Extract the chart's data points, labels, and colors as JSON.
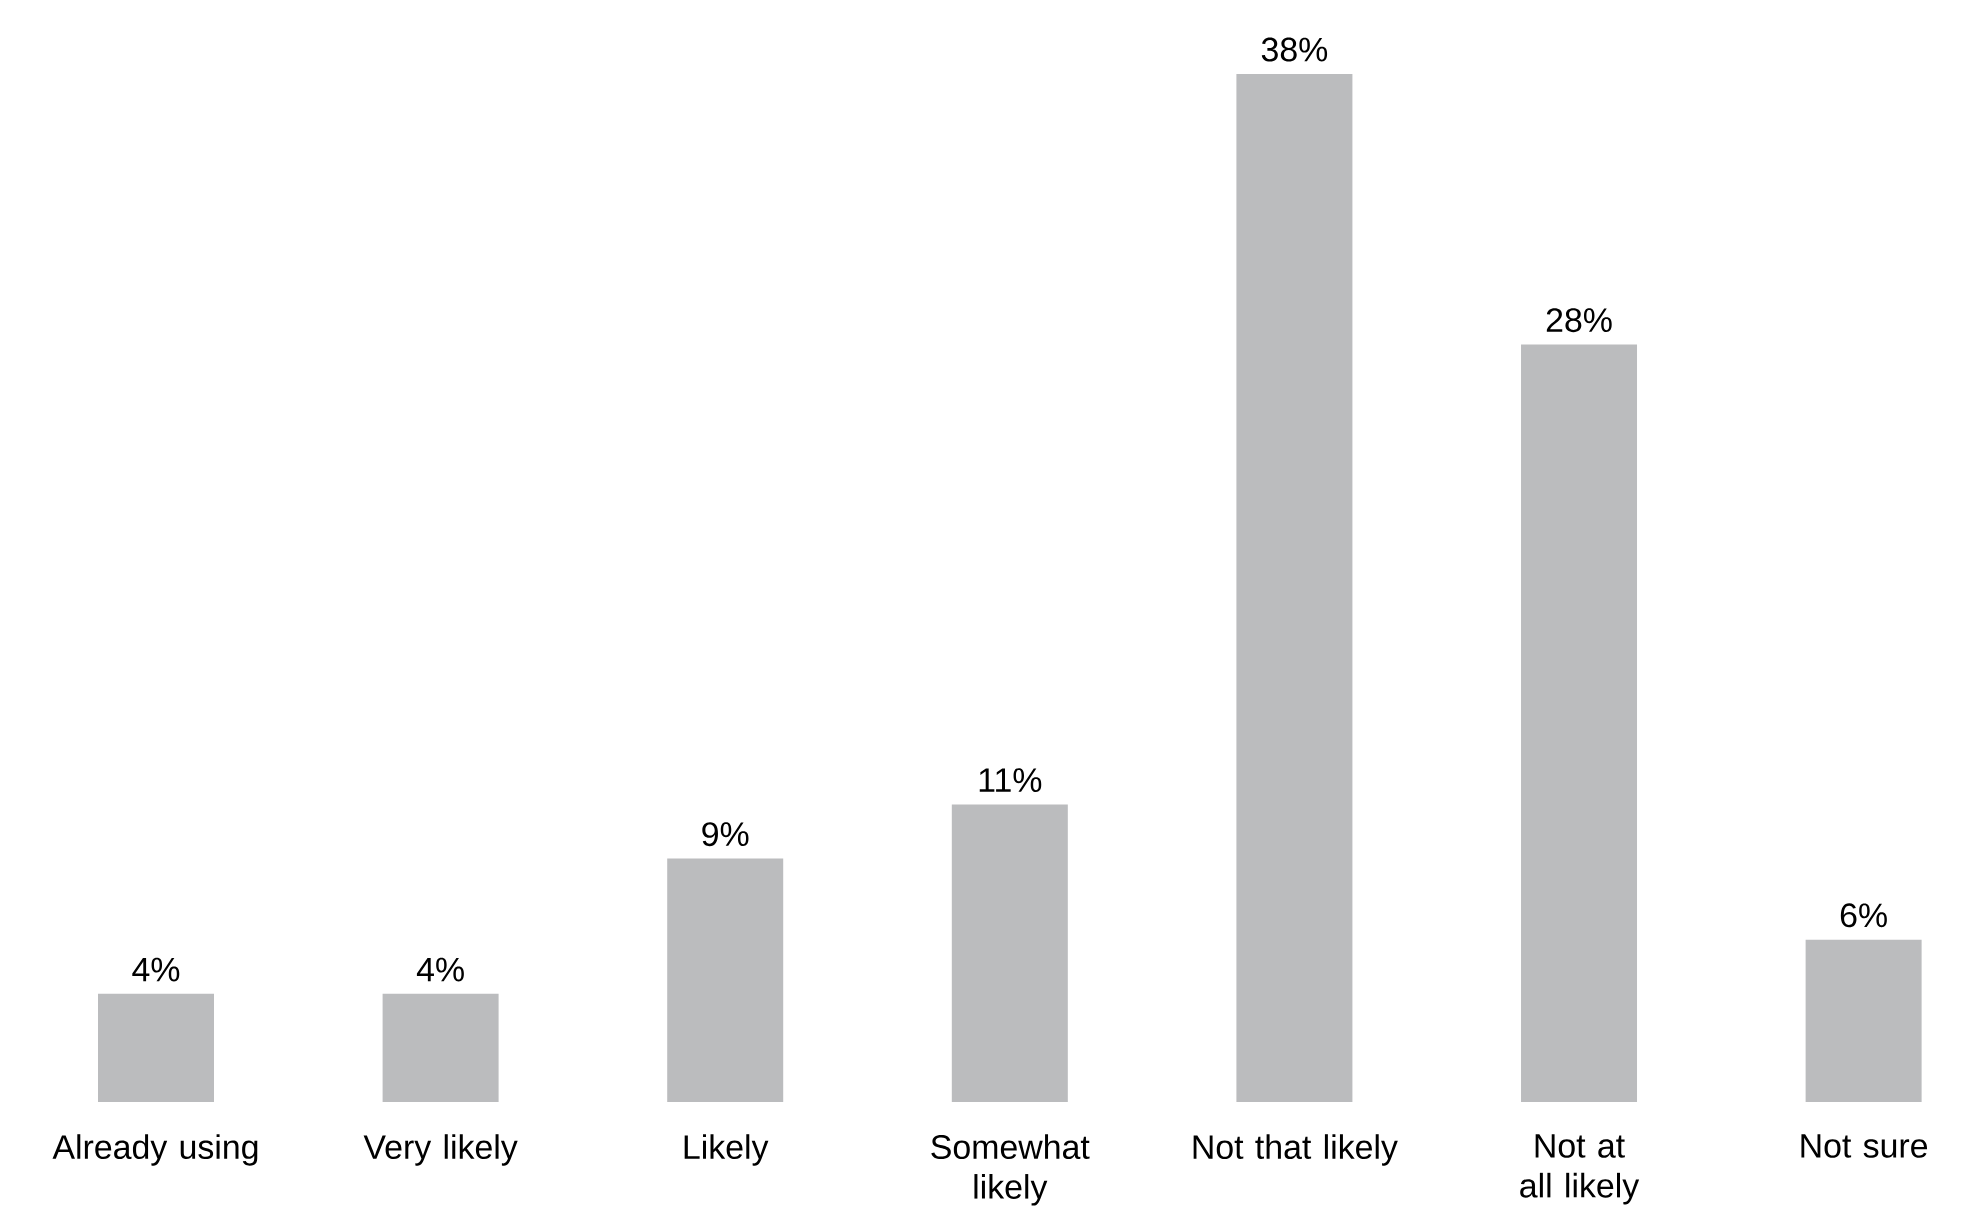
{
  "chart_data": {
    "type": "bar",
    "categories": [
      "Already using",
      "Very likely",
      "Likely",
      "Somewhat likely",
      "Not that likely",
      "Not at all likely",
      "Not sure"
    ],
    "values": [
      4,
      4,
      9,
      11,
      38,
      28,
      6
    ],
    "value_labels": [
      "4%",
      "4%",
      "9%",
      "11%",
      "38%",
      "28%",
      "6%"
    ],
    "color": "#bbbcbe"
  }
}
